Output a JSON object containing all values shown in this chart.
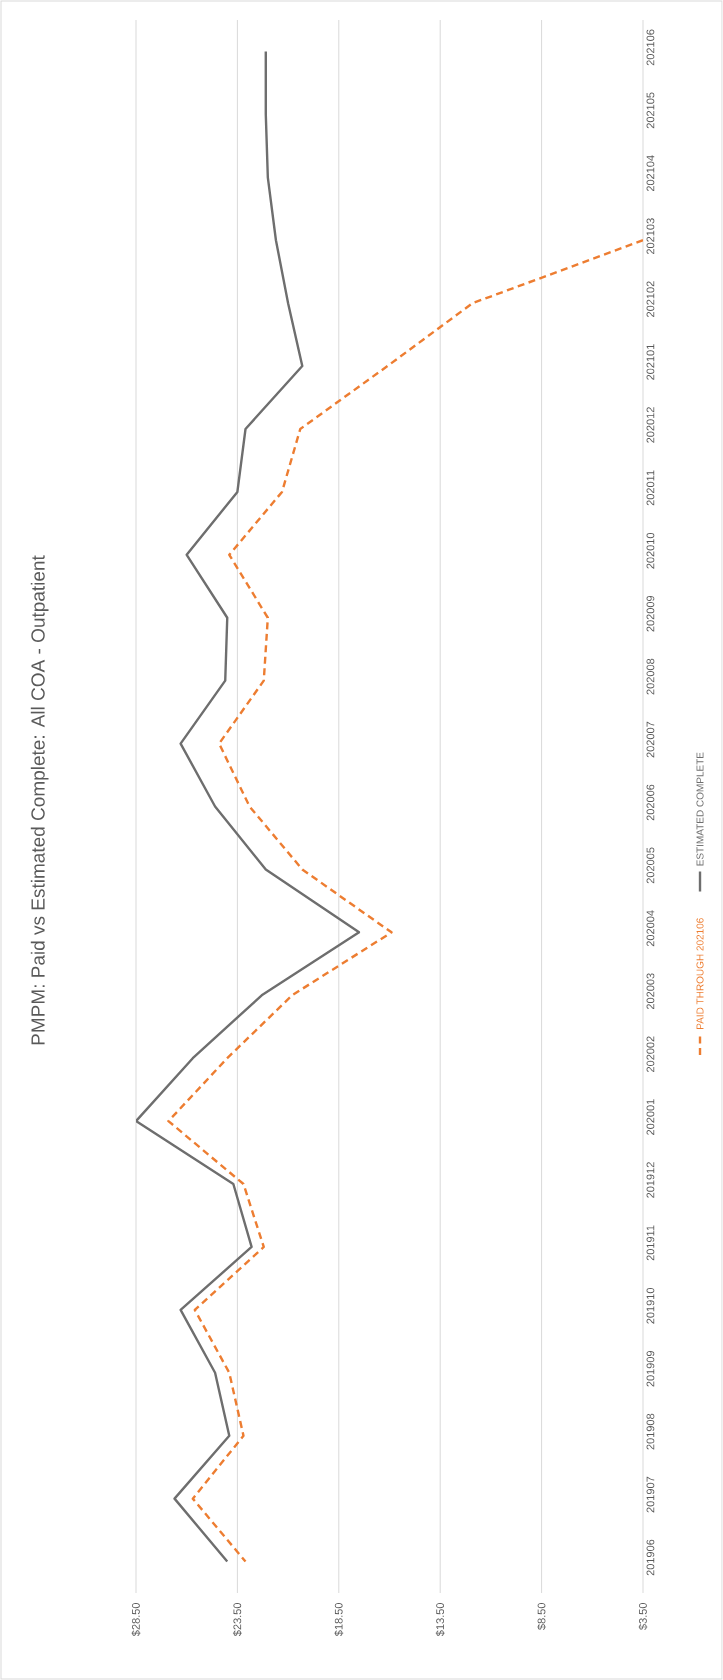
{
  "chart_data": {
    "type": "line",
    "orientation": "horizontal",
    "title": "PMPM: Paid vs Estimated Complete: All COA - Outpatient",
    "categories": [
      "202106",
      "202105",
      "202104",
      "202103",
      "202102",
      "202101",
      "202012",
      "202011",
      "202010",
      "202009",
      "202008",
      "202007",
      "202006",
      "202005",
      "202004",
      "202003",
      "202002",
      "202001",
      "201912",
      "201911",
      "201910",
      "201909",
      "201908",
      "201907",
      "201906"
    ],
    "series": [
      {
        "name": "PAID THROUGH 202106",
        "color": "#ed7d31",
        "line_style": "dashed",
        "values": [
          null,
          null,
          null,
          3.5,
          11.9,
          16.1,
          20.4,
          21.3,
          23.9,
          22.0,
          22.2,
          24.4,
          22.9,
          20.3,
          15.9,
          20.8,
          24.0,
          26.9,
          23.2,
          22.2,
          25.6,
          23.9,
          23.2,
          25.7,
          23.1
        ]
      },
      {
        "name": "ESTIMATED COMPLETE",
        "color": "#6e6e6e",
        "line_style": "solid",
        "values": [
          22.1,
          22.1,
          22.0,
          21.6,
          21.0,
          20.3,
          23.1,
          23.5,
          26.0,
          24.0,
          24.1,
          26.3,
          24.6,
          22.1,
          17.5,
          22.3,
          25.7,
          28.5,
          23.7,
          22.8,
          26.3,
          24.6,
          23.9,
          26.6,
          24.0
        ]
      }
    ],
    "xlim": [
      28.5,
      3.5
    ],
    "xticks": [
      {
        "value": 28.5,
        "label": "$28.50"
      },
      {
        "value": 23.5,
        "label": "$23.50"
      },
      {
        "value": 18.5,
        "label": "$18.50"
      },
      {
        "value": 13.5,
        "label": "$13.50"
      },
      {
        "value": 8.5,
        "label": "$8.50"
      },
      {
        "value": 3.5,
        "label": "$3.50"
      }
    ],
    "grid": "x",
    "legend": "right"
  }
}
